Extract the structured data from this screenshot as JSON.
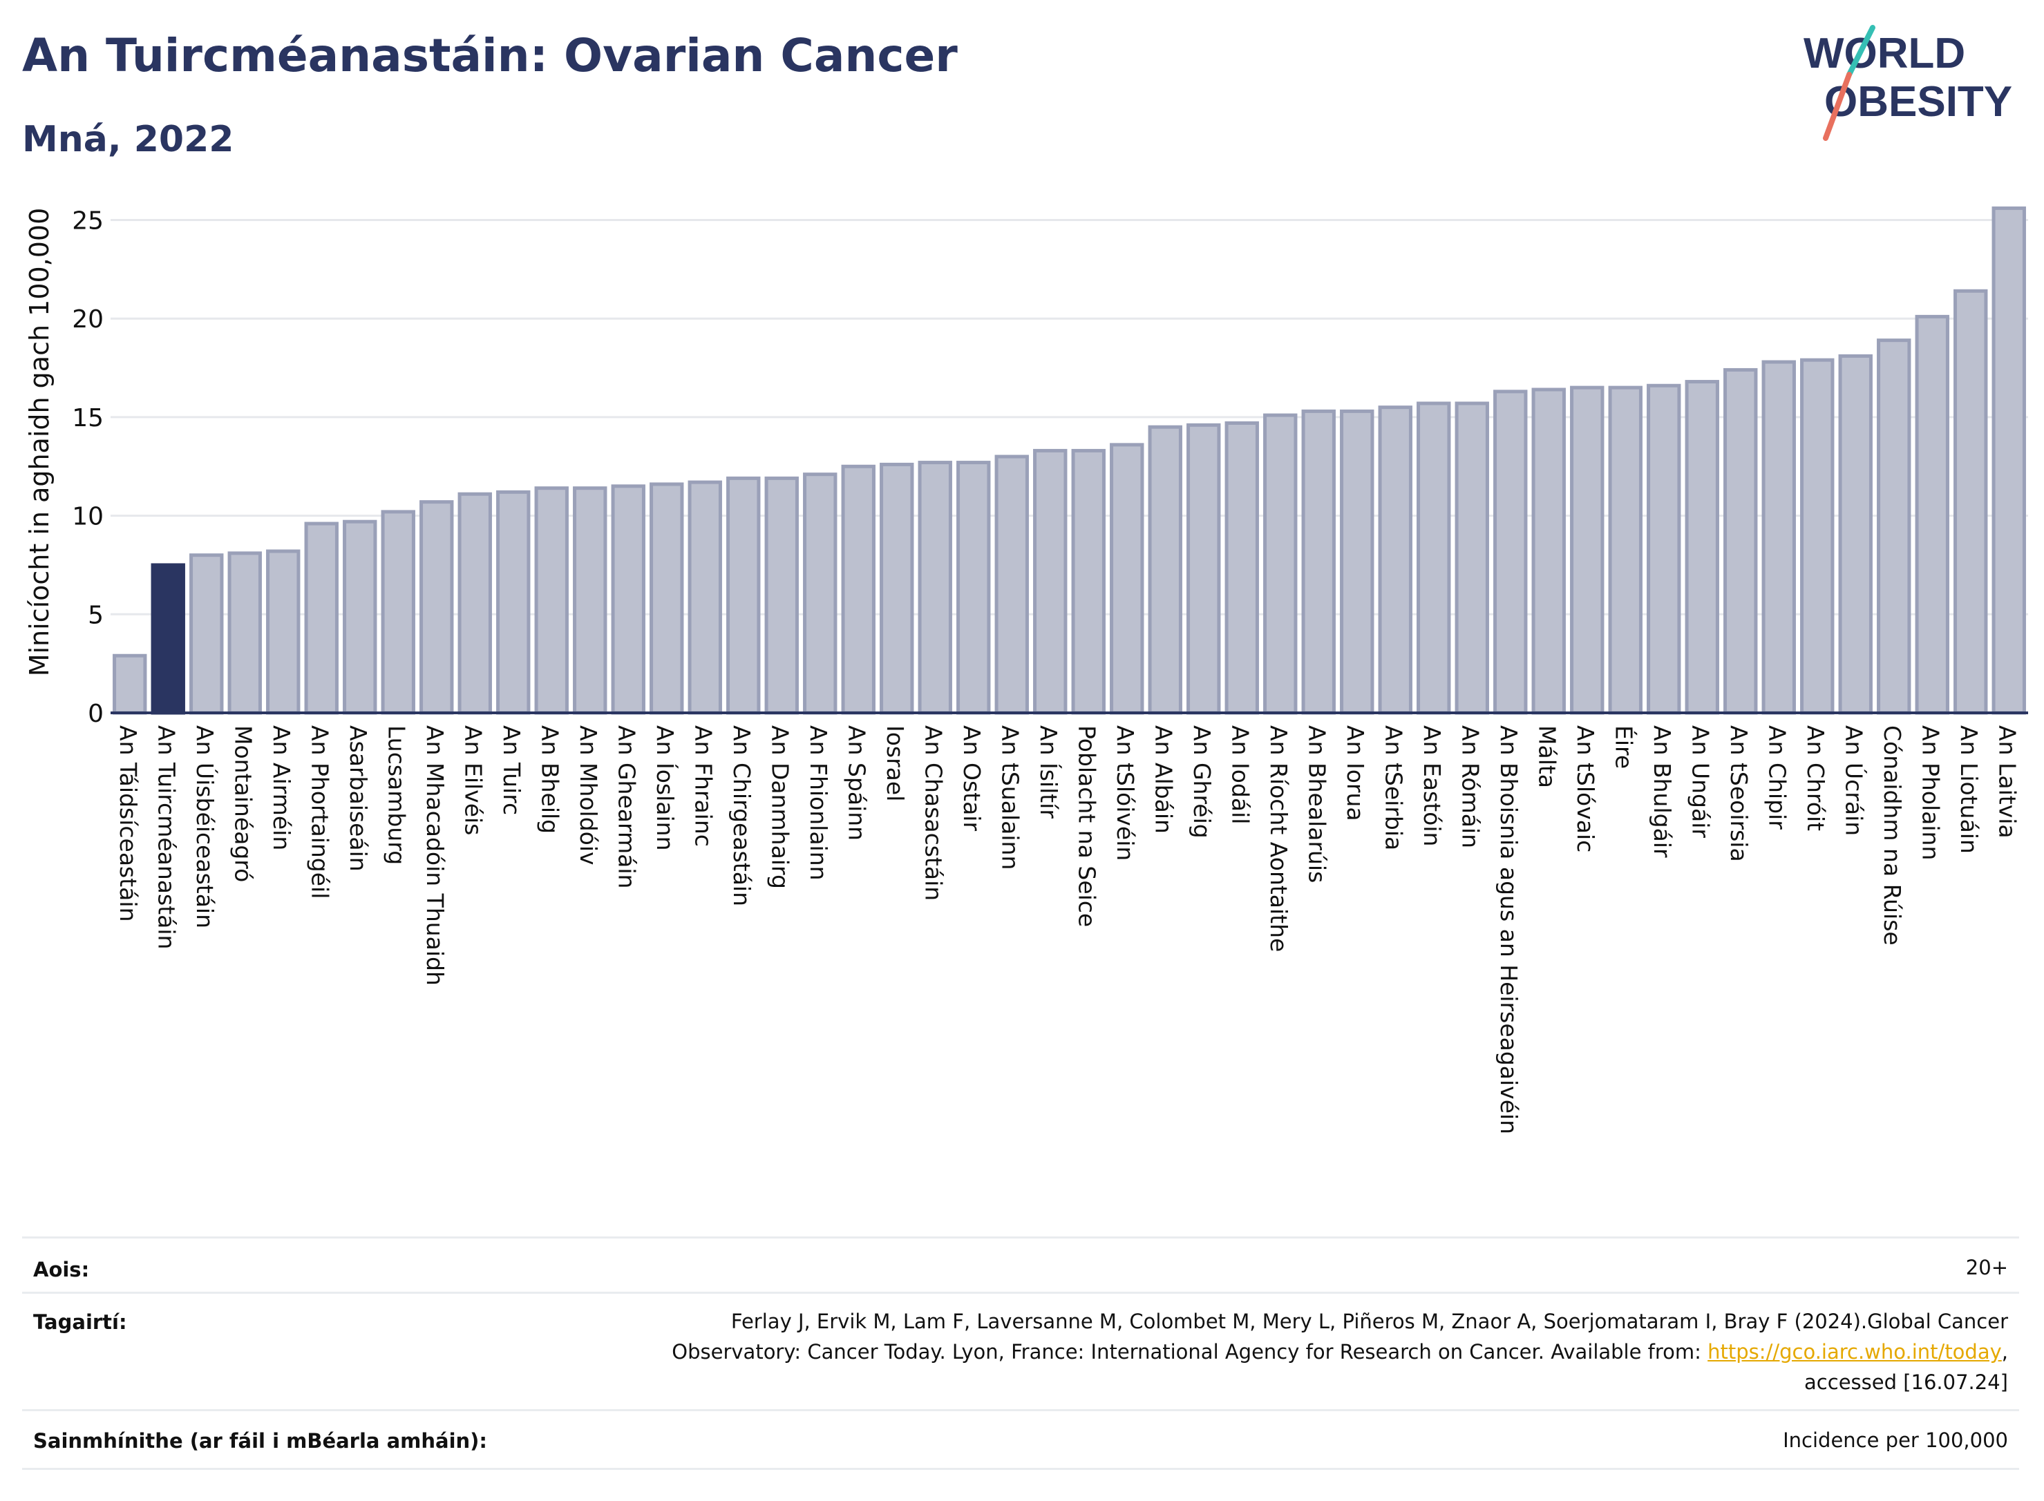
{
  "header": {
    "title": "An Tuircméanastáin: Ovarian Cancer",
    "subtitle": "Mná, 2022",
    "logo_line1": "WORLD",
    "logo_line2": "OBESITY"
  },
  "colors": {
    "highlight": "#2a3561",
    "bar": "#bcc0cf",
    "bar_stroke": "#9aa0b8",
    "axis": "#2a3561",
    "grid": "#e6e8ec",
    "logo_teal": "#35bfb4",
    "logo_coral": "#e8705e"
  },
  "chart_data": {
    "type": "bar",
    "title": "An Tuircméanastáin: Ovarian Cancer",
    "subtitle": "Mná, 2022",
    "xlabel": "",
    "ylabel": "Minicíocht in aghaidh gach 100,000",
    "ylim": [
      0,
      26
    ],
    "yticks": [
      0,
      5,
      10,
      15,
      20,
      25
    ],
    "grid": true,
    "highlight_category": "An Tuircméanastáin",
    "categories": [
      "An Táidsíceastáin",
      "An Tuircméanastáin",
      "An Úisbéiceastáin",
      "Montainéagró",
      "An Airméin",
      "An Phortaingéil",
      "Asarbaiseáin",
      "Lucsamburg",
      "An Mhacadóin Thuaidh",
      "An Eilvéis",
      "An Tuirc",
      "An Bheilg",
      "An Mholdóiv",
      "An Ghearmáin",
      "An Íoslainn",
      "An Fhrainc",
      "An Chirgeastáin",
      "An Danmhairg",
      "An Fhionlainn",
      "An Spáinn",
      "Iosrael",
      "An Chasacstáin",
      "An Ostair",
      "An tSualainn",
      "An Ísiltír",
      "Poblacht na Seice",
      "An tSlóivéin",
      "An Albáin",
      "An Ghréig",
      "An Iodáil",
      "An Ríocht Aontaithe",
      "An Bhealarúis",
      "An Iorua",
      "An tSeirbia",
      "An Eastóin",
      "An Rómáin",
      "An Bhoisnia agus an Heirseagaivéin",
      "Málta",
      "An tSlóvaic",
      "Éire",
      "An Bhulgáir",
      "An Ungáir",
      "An tSeoirsia",
      "An Chipir",
      "An Chróit",
      "An Úcráin",
      "Cónaidhm na Rúise",
      "An Pholainn",
      "An Liotuáin",
      "An Laitvia"
    ],
    "values": [
      2.9,
      7.5,
      8.0,
      8.1,
      8.2,
      9.6,
      9.7,
      10.2,
      10.7,
      11.1,
      11.2,
      11.4,
      11.4,
      11.5,
      11.6,
      11.7,
      11.9,
      11.9,
      12.1,
      12.5,
      12.6,
      12.7,
      12.7,
      13.0,
      13.3,
      13.3,
      13.6,
      14.5,
      14.6,
      14.7,
      15.1,
      15.3,
      15.3,
      15.5,
      15.7,
      15.7,
      16.3,
      16.4,
      16.5,
      16.5,
      16.6,
      16.8,
      17.4,
      17.8,
      17.9,
      18.1,
      18.9,
      20.1,
      21.4,
      25.6
    ]
  },
  "meta": {
    "age_label": "Aois:",
    "age_value": "20+",
    "ref_label": "Tagairtí:",
    "ref_line1": "Ferlay J, Ervik M, Lam F, Laversanne M, Colombet M, Mery L, Piñeros M, Znaor A, Soerjomataram I, Bray F (2024).Global Cancer",
    "ref_line2_prefix": "Observatory: Cancer Today. Lyon, France: International Agency for Research on Cancer. Available from: ",
    "ref_link": "https://gco.iarc.who.int/today",
    "ref_line2_suffix": ",",
    "ref_line3": "accessed [16.07.24]",
    "def_label": "Sainmhínithe (ar fáil i mBéarla amháin):",
    "def_value": "Incidence per 100,000"
  }
}
